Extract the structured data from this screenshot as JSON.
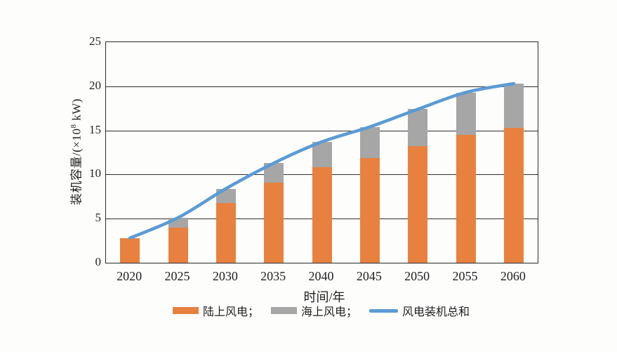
{
  "chart_data": {
    "type": "bar",
    "subtype": "stacked-bars-with-total-line",
    "title": "",
    "categories": [
      "2020",
      "2025",
      "2030",
      "2035",
      "2040",
      "2045",
      "2050",
      "2055",
      "2060"
    ],
    "series": [
      {
        "id": "onshore-wind",
        "name": "陆上风电",
        "type": "bar",
        "color": "#E8813F",
        "values": [
          2.8,
          4.0,
          6.8,
          9.1,
          10.8,
          11.9,
          13.2,
          14.5,
          15.3
        ]
      },
      {
        "id": "offshore-wind",
        "name": "海上风电",
        "type": "bar",
        "color": "#A6A6A6",
        "values": [
          0,
          1.1,
          1.6,
          2.2,
          2.9,
          3.5,
          4.2,
          4.8,
          5.0
        ]
      },
      {
        "id": "total-wind",
        "name": "风电装机总和",
        "type": "line",
        "color": "#5B9BD5",
        "values": [
          2.8,
          5.1,
          8.4,
          11.3,
          13.7,
          15.4,
          17.4,
          19.3,
          20.3
        ]
      }
    ],
    "xlabel": "时间/年",
    "ylabel": "装机容量/(×10⁸ kW)",
    "ylim": [
      0,
      25
    ],
    "y_ticks": [
      0,
      5,
      10,
      15,
      20,
      25
    ],
    "grid": "horizontal",
    "legend_position": "bottom",
    "axis_color": "#2b2b2b"
  },
  "axes": {
    "y_label_prefix": "装机容量/(×10",
    "y_label_sup": "8",
    "y_label_suffix": " kW)",
    "x_label": "时间/年"
  },
  "legend": {
    "items": [
      {
        "id": "onshore-wind",
        "label": "陆上风电；",
        "marker": "swatch",
        "color": "#E8813F"
      },
      {
        "id": "offshore-wind",
        "label": "海上风电；",
        "marker": "swatch",
        "color": "#A6A6A6"
      },
      {
        "id": "total-wind",
        "label": "风电装机总和",
        "marker": "line",
        "color": "#5B9BD5"
      }
    ]
  }
}
